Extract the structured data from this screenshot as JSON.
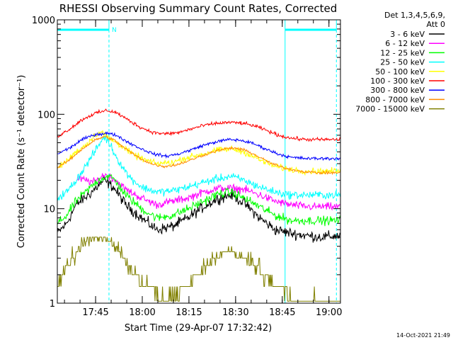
{
  "chart_data": {
    "type": "line",
    "title": "RHESSI Observing Summary Count Rates, Corrected",
    "ylabel": "Corrected Count Rate (s⁻¹ detector⁻¹)",
    "xlabel": "Start Time (29-Apr-07 17:32:42)",
    "yscale": "log",
    "ylim": [
      1,
      1000
    ],
    "xlim_minutes": [
      0,
      91
    ],
    "y_ticks": [
      {
        "value": 1,
        "label": "1"
      },
      {
        "value": 10,
        "label": "10"
      },
      {
        "value": 100,
        "label": "100"
      },
      {
        "value": 1000,
        "label": "1000"
      }
    ],
    "x_ticks": [
      {
        "t": 12.3,
        "label": "17:45"
      },
      {
        "t": 27.3,
        "label": "18:00"
      },
      {
        "t": 42.3,
        "label": "18:15"
      },
      {
        "t": 57.3,
        "label": "18:30"
      },
      {
        "t": 72.3,
        "label": "18:45"
      },
      {
        "t": 87.3,
        "label": "19:00"
      }
    ],
    "legend_header": [
      "Det 1,3,4,5,6,9,",
      "Att 0"
    ],
    "series": [
      {
        "name": "3 - 6 keV",
        "color": "#000000",
        "start": 0,
        "end": 91,
        "noise": 0.12,
        "points": [
          [
            0,
            5.5
          ],
          [
            3,
            7
          ],
          [
            6,
            11
          ],
          [
            10,
            14
          ],
          [
            15,
            20
          ],
          [
            18,
            17
          ],
          [
            22,
            11
          ],
          [
            27,
            8
          ],
          [
            32,
            6
          ],
          [
            37,
            6.5
          ],
          [
            42,
            8
          ],
          [
            47,
            10.5
          ],
          [
            52,
            13
          ],
          [
            56,
            14
          ],
          [
            60,
            11.5
          ],
          [
            65,
            8
          ],
          [
            70,
            6
          ],
          [
            75,
            5.5
          ],
          [
            80,
            5.2
          ],
          [
            85,
            5
          ],
          [
            91,
            5.2
          ]
        ]
      },
      {
        "name": "6 - 12 keV",
        "color": "#ff00ff",
        "start": 6.5,
        "end": 91,
        "noise": 0.09,
        "points": [
          [
            6.5,
            21
          ],
          [
            9,
            20
          ],
          [
            12,
            19
          ],
          [
            15,
            23
          ],
          [
            18,
            21
          ],
          [
            22,
            16
          ],
          [
            27,
            13
          ],
          [
            32,
            11
          ],
          [
            37,
            12
          ],
          [
            42,
            13
          ],
          [
            47,
            15
          ],
          [
            52,
            16.5
          ],
          [
            56,
            16.5
          ],
          [
            60,
            16
          ],
          [
            65,
            14
          ],
          [
            70,
            12
          ],
          [
            75,
            11
          ],
          [
            80,
            10.5
          ],
          [
            85,
            10.5
          ],
          [
            91,
            10.5
          ]
        ]
      },
      {
        "name": "12 - 25 keV",
        "color": "#00ff00",
        "start": 0,
        "end": 91,
        "noise": 0.1,
        "points": [
          [
            0,
            7
          ],
          [
            3,
            8.5
          ],
          [
            6,
            12
          ],
          [
            10,
            16
          ],
          [
            13,
            20
          ],
          [
            16,
            22
          ],
          [
            18,
            21
          ],
          [
            22,
            14
          ],
          [
            27,
            10
          ],
          [
            32,
            8
          ],
          [
            37,
            8.5
          ],
          [
            42,
            10
          ],
          [
            47,
            12
          ],
          [
            52,
            14.5
          ],
          [
            56,
            15
          ],
          [
            60,
            13
          ],
          [
            65,
            10.5
          ],
          [
            70,
            8.5
          ],
          [
            75,
            7.5
          ],
          [
            80,
            7.5
          ],
          [
            85,
            7.5
          ],
          [
            91,
            7.5
          ]
        ]
      },
      {
        "name": "25 - 50 keV",
        "color": "#00ffff",
        "start": 0,
        "end": 91,
        "noise": 0.09,
        "points": [
          [
            0,
            13
          ],
          [
            3,
            15
          ],
          [
            6,
            20
          ],
          [
            9,
            28
          ],
          [
            12,
            40
          ],
          [
            15,
            58
          ],
          [
            17,
            48
          ],
          [
            19,
            35
          ],
          [
            23,
            22
          ],
          [
            27,
            17
          ],
          [
            32,
            15
          ],
          [
            37,
            15.5
          ],
          [
            42,
            17
          ],
          [
            47,
            19
          ],
          [
            52,
            21
          ],
          [
            56,
            22
          ],
          [
            60,
            20
          ],
          [
            65,
            17
          ],
          [
            70,
            15
          ],
          [
            75,
            14
          ],
          [
            80,
            14
          ],
          [
            85,
            14
          ],
          [
            91,
            14
          ]
        ]
      },
      {
        "name": "50 - 100 keV",
        "color": "#ffff00",
        "start": 0,
        "end": 91,
        "noise": 0.07,
        "points": [
          [
            0,
            27
          ],
          [
            3,
            32
          ],
          [
            6,
            40
          ],
          [
            10,
            50
          ],
          [
            12,
            60
          ],
          [
            14,
            65
          ],
          [
            17,
            55
          ],
          [
            20,
            48
          ],
          [
            24,
            38
          ],
          [
            28,
            33
          ],
          [
            32,
            30
          ],
          [
            37,
            31
          ],
          [
            42,
            35
          ],
          [
            47,
            38
          ],
          [
            52,
            42
          ],
          [
            56,
            43
          ],
          [
            60,
            40
          ],
          [
            65,
            33
          ],
          [
            70,
            28
          ],
          [
            75,
            26
          ],
          [
            80,
            25
          ],
          [
            85,
            25
          ],
          [
            91,
            25
          ]
        ]
      },
      {
        "name": "100 - 300 keV",
        "color": "#ff0000",
        "start": 0,
        "end": 91,
        "noise": 0.04,
        "points": [
          [
            0,
            58
          ],
          [
            4,
            70
          ],
          [
            8,
            88
          ],
          [
            12,
            102
          ],
          [
            16,
            110
          ],
          [
            19,
            104
          ],
          [
            23,
            86
          ],
          [
            27,
            72
          ],
          [
            31,
            64
          ],
          [
            35,
            62
          ],
          [
            39,
            64
          ],
          [
            43,
            70
          ],
          [
            47,
            76
          ],
          [
            51,
            80
          ],
          [
            55,
            82
          ],
          [
            59,
            81
          ],
          [
            63,
            76
          ],
          [
            67,
            68
          ],
          [
            71,
            60
          ],
          [
            75,
            56
          ],
          [
            80,
            54
          ],
          [
            85,
            54
          ],
          [
            91,
            54
          ]
        ]
      },
      {
        "name": "300 - 800 keV",
        "color": "#0000ff",
        "start": 0,
        "end": 91,
        "noise": 0.035,
        "points": [
          [
            0,
            38
          ],
          [
            4,
            44
          ],
          [
            8,
            54
          ],
          [
            12,
            61
          ],
          [
            16,
            63
          ],
          [
            19,
            60
          ],
          [
            23,
            50
          ],
          [
            27,
            43
          ],
          [
            31,
            38
          ],
          [
            35,
            36
          ],
          [
            39,
            38
          ],
          [
            43,
            42
          ],
          [
            47,
            47
          ],
          [
            51,
            51
          ],
          [
            55,
            54
          ],
          [
            59,
            53
          ],
          [
            63,
            49
          ],
          [
            67,
            43
          ],
          [
            71,
            38
          ],
          [
            75,
            35
          ],
          [
            80,
            34
          ],
          [
            85,
            34
          ],
          [
            91,
            34
          ]
        ]
      },
      {
        "name": "800 - 7000 keV",
        "color": "#ff8c00",
        "start": 0,
        "end": 91,
        "noise": 0.03,
        "points": [
          [
            0,
            27
          ],
          [
            4,
            33
          ],
          [
            8,
            43
          ],
          [
            12,
            53
          ],
          [
            15,
            58
          ],
          [
            18,
            54
          ],
          [
            22,
            43
          ],
          [
            26,
            35
          ],
          [
            30,
            30
          ],
          [
            34,
            28
          ],
          [
            38,
            29
          ],
          [
            42,
            32
          ],
          [
            46,
            36
          ],
          [
            50,
            40
          ],
          [
            54,
            43
          ],
          [
            57,
            44
          ],
          [
            61,
            41
          ],
          [
            65,
            35
          ],
          [
            69,
            30
          ],
          [
            73,
            27
          ],
          [
            78,
            25
          ],
          [
            84,
            24
          ],
          [
            91,
            24
          ]
        ]
      },
      {
        "name": "7000 - 15000 keV",
        "color": "#808000",
        "start": 0,
        "end": 91,
        "quantized": true,
        "noise": 0,
        "points": [
          [
            0,
            1.6
          ],
          [
            3,
            2.5
          ],
          [
            6,
            3.3
          ],
          [
            9,
            4.2
          ],
          [
            12,
            5
          ],
          [
            15,
            5
          ],
          [
            17,
            4.5
          ],
          [
            20,
            3.5
          ],
          [
            24,
            2.2
          ],
          [
            28,
            1.5
          ],
          [
            33,
            1.2
          ],
          [
            38,
            1.2
          ],
          [
            42,
            1.5
          ],
          [
            46,
            2.1
          ],
          [
            50,
            3
          ],
          [
            55,
            3.6
          ],
          [
            59,
            3.2
          ],
          [
            63,
            2.6
          ],
          [
            67,
            1.9
          ],
          [
            71,
            1.4
          ],
          [
            76,
            1.2
          ],
          [
            82,
            1.1
          ],
          [
            91,
            1.1
          ]
        ]
      }
    ],
    "annotations": {
      "event_lines_t": [
        16.6,
        73.2,
        89.7
      ],
      "top_bars_t": [
        [
          0,
          16.6
        ],
        [
          73.2,
          89.7
        ]
      ],
      "event_label": "N"
    }
  },
  "footer": {
    "timestamp": "14-Oct-2021 21:49"
  }
}
